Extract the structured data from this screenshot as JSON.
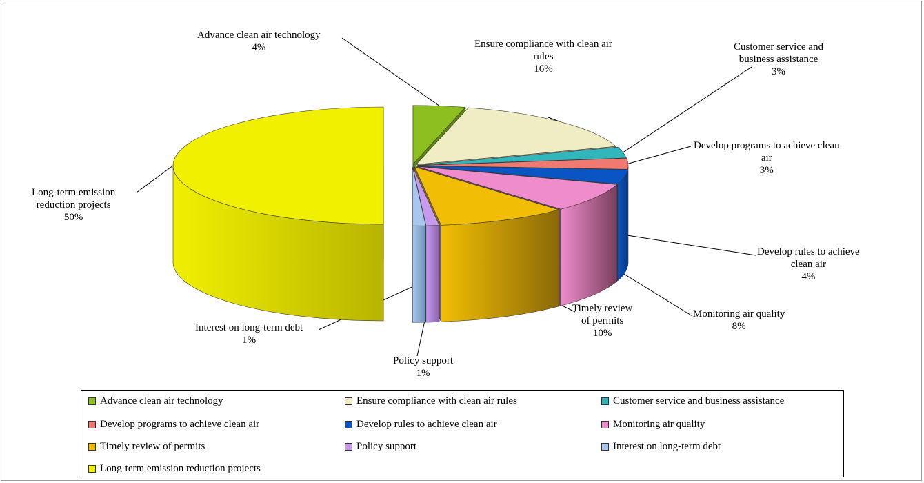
{
  "chart_data": {
    "type": "pie",
    "style": "3d-exploded",
    "title": "",
    "legend_position": "bottom",
    "slices": [
      {
        "key": "advance",
        "name": "Advance clean air technology",
        "value": 4,
        "pct_label": "4%",
        "color": "#8DBF21",
        "side": "#5E8512",
        "label_lines": [
          "Advance clean air technology"
        ]
      },
      {
        "key": "compliance",
        "name": "Ensure compliance with clean air rules",
        "value": 16,
        "pct_label": "16%",
        "color": "#EEEDC3",
        "side": "#B4B38C",
        "label_lines": [
          "Ensure compliance with clean air",
          "rules"
        ]
      },
      {
        "key": "customer",
        "name": "Customer service and business assistance",
        "value": 3,
        "pct_label": "3%",
        "color": "#31B6BC",
        "side": "#1F7E82",
        "label_lines": [
          "Customer service and",
          "business assistance"
        ]
      },
      {
        "key": "programs",
        "name": "Develop programs to achieve clean air",
        "value": 3,
        "pct_label": "3%",
        "color": "#F07A72",
        "side": "#A84C46",
        "label_lines": [
          "Develop programs to achieve clean",
          "air"
        ]
      },
      {
        "key": "rules",
        "name": "Develop rules to achieve clean air",
        "value": 4,
        "pct_label": "4%",
        "color": "#0A55C4",
        "side": "#063A88",
        "label_lines": [
          "Develop rules to achieve",
          "clean air"
        ]
      },
      {
        "key": "monitoring",
        "name": "Monitoring air quality",
        "value": 8,
        "pct_label": "8%",
        "color": "#EE8CCC",
        "side": "#7A3F5C",
        "label_lines": [
          "Monitoring air quality"
        ]
      },
      {
        "key": "permits",
        "name": "Timely review of permits",
        "value": 10,
        "pct_label": "10%",
        "color": "#F2BE05",
        "side": "#8A6A06",
        "label_lines": [
          "Timely review",
          "of permits"
        ]
      },
      {
        "key": "policy",
        "name": "Policy support",
        "value": 1,
        "pct_label": "1%",
        "color": "#C79AF0",
        "side": "#8A64B0",
        "label_lines": [
          "Policy support"
        ]
      },
      {
        "key": "interest",
        "name": "Interest on long-term debt",
        "value": 1,
        "pct_label": "1%",
        "color": "#A9C7EE",
        "side": "#6F91BA",
        "label_lines": [
          "Interest on long-term debt"
        ]
      },
      {
        "key": "longterm",
        "name": "Long-term emission reduction projects",
        "value": 50,
        "pct_label": "50%",
        "color": "#F1F001",
        "side": "#B8B400",
        "label_lines": [
          "Long-term emission",
          "reduction projects"
        ]
      }
    ]
  }
}
